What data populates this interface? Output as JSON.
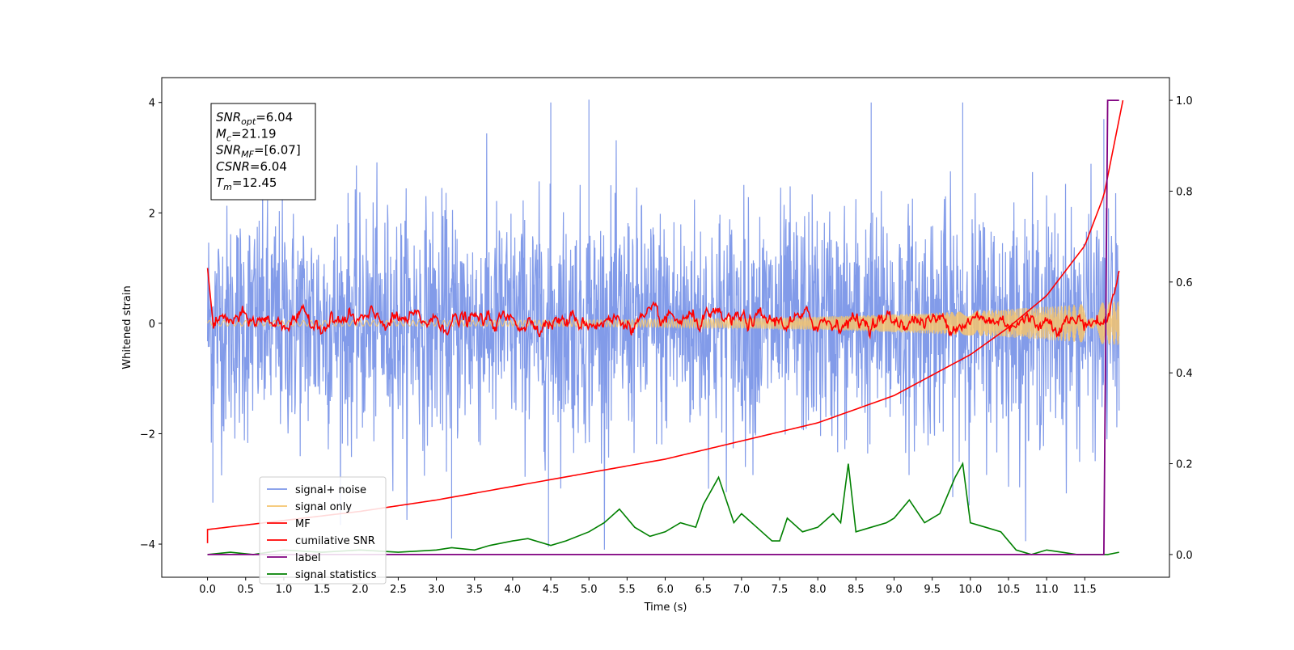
{
  "chart_data": {
    "type": "line",
    "xlabel": "Time (s)",
    "ylabel": "Whitened strain",
    "xlim": [
      -0.6,
      12.61
    ],
    "ylim_left": [
      -4.6,
      4.45
    ],
    "ylim_right": [
      -0.05,
      1.05
    ],
    "x_ticks": [
      "0.0",
      "0.5",
      "1.0",
      "1.5",
      "2.0",
      "2.5",
      "3.0",
      "3.5",
      "4.0",
      "4.5",
      "5.0",
      "5.5",
      "6.0",
      "6.5",
      "7.0",
      "7.5",
      "8.0",
      "8.5",
      "9.0",
      "9.5",
      "10.0",
      "10.5",
      "11.0",
      "11.5"
    ],
    "y_ticks_left": [
      "4",
      "2",
      "0",
      "−2",
      "−4"
    ],
    "y_ticks_right": [
      "1.0",
      "0.8",
      "0.6",
      "0.4",
      "0.2",
      "0.0"
    ],
    "grid": false,
    "legend_position": "lower-left",
    "annotation": {
      "lines": [
        {
          "sym": "SNR",
          "sub": "opt",
          "val": "=6.04"
        },
        {
          "sym": "M",
          "sub": "c",
          "val": "=21.19"
        },
        {
          "sym": "SNR",
          "sub": "MF",
          "val": "=[6.07]"
        },
        {
          "sym": "CSNR",
          "sub": "",
          "val": "=6.04"
        },
        {
          "sym": "T",
          "sub": "m",
          "val": "=12.45"
        }
      ]
    },
    "series": [
      {
        "name": "signal+ noise",
        "axis": "left",
        "color": "#7b96e8",
        "kind": "noise",
        "noise_std": 1.05,
        "spike_max": 4.0,
        "spike_min": -4.1,
        "notable_spikes": [
          [
            4.47,
            -4.05
          ],
          [
            4.5,
            4.0
          ],
          [
            5.0,
            4.05
          ],
          [
            3.2,
            -3.9
          ],
          [
            8.7,
            4.0
          ],
          [
            9.9,
            4.0
          ],
          [
            11.75,
            3.7
          ],
          [
            0.07,
            -3.25
          ]
        ]
      },
      {
        "name": "signal only",
        "axis": "left",
        "color": "#f5c46e",
        "kind": "chirp",
        "amp_start": 0.05,
        "amp_end": 0.4
      },
      {
        "name": "MF",
        "axis": "left",
        "color": "#ff0000",
        "kind": "matched_filter",
        "start_value": 1.0,
        "end_value": 0.95,
        "typical_range": [
          -0.25,
          0.55
        ]
      },
      {
        "name": "cumilative SNR",
        "axis": "right",
        "color": "#ff0000",
        "kind": "cumulative",
        "x": [
          0.0,
          1.0,
          2.0,
          3.0,
          4.0,
          5.0,
          6.0,
          7.0,
          8.0,
          9.0,
          10.0,
          10.5,
          11.0,
          11.5,
          11.75,
          12.0
        ],
        "y": [
          0.055,
          0.075,
          0.095,
          0.12,
          0.15,
          0.18,
          0.21,
          0.25,
          0.29,
          0.35,
          0.44,
          0.5,
          0.57,
          0.68,
          0.79,
          1.0
        ]
      },
      {
        "name": "label",
        "axis": "right",
        "color": "#800080",
        "kind": "step",
        "x": [
          0.0,
          11.75,
          11.8,
          11.95
        ],
        "y": [
          0.0,
          0.0,
          1.0,
          1.0
        ]
      },
      {
        "name": "signal statistics",
        "axis": "right",
        "color": "#008000",
        "kind": "line",
        "x": [
          0.0,
          0.3,
          0.6,
          1.0,
          1.5,
          2.0,
          2.5,
          3.0,
          3.2,
          3.5,
          3.7,
          4.0,
          4.2,
          4.5,
          4.7,
          5.0,
          5.2,
          5.4,
          5.6,
          5.8,
          6.0,
          6.2,
          6.4,
          6.5,
          6.7,
          6.9,
          7.0,
          7.2,
          7.4,
          7.5,
          7.6,
          7.8,
          8.0,
          8.2,
          8.3,
          8.4,
          8.5,
          8.7,
          8.9,
          9.0,
          9.2,
          9.4,
          9.6,
          9.8,
          9.9,
          10.0,
          10.2,
          10.4,
          10.6,
          10.8,
          11.0,
          11.2,
          11.4,
          11.6,
          11.8,
          11.95
        ],
        "y": [
          0.0,
          0.005,
          0.0,
          0.01,
          0.005,
          0.01,
          0.005,
          0.01,
          0.015,
          0.01,
          0.02,
          0.03,
          0.035,
          0.02,
          0.03,
          0.05,
          0.07,
          0.1,
          0.06,
          0.04,
          0.05,
          0.07,
          0.06,
          0.11,
          0.17,
          0.07,
          0.09,
          0.06,
          0.03,
          0.03,
          0.08,
          0.05,
          0.06,
          0.09,
          0.07,
          0.2,
          0.05,
          0.06,
          0.07,
          0.08,
          0.12,
          0.07,
          0.09,
          0.17,
          0.2,
          0.07,
          0.06,
          0.05,
          0.01,
          0.0,
          0.01,
          0.005,
          0.0,
          0.0,
          0.0,
          0.005
        ]
      }
    ]
  }
}
